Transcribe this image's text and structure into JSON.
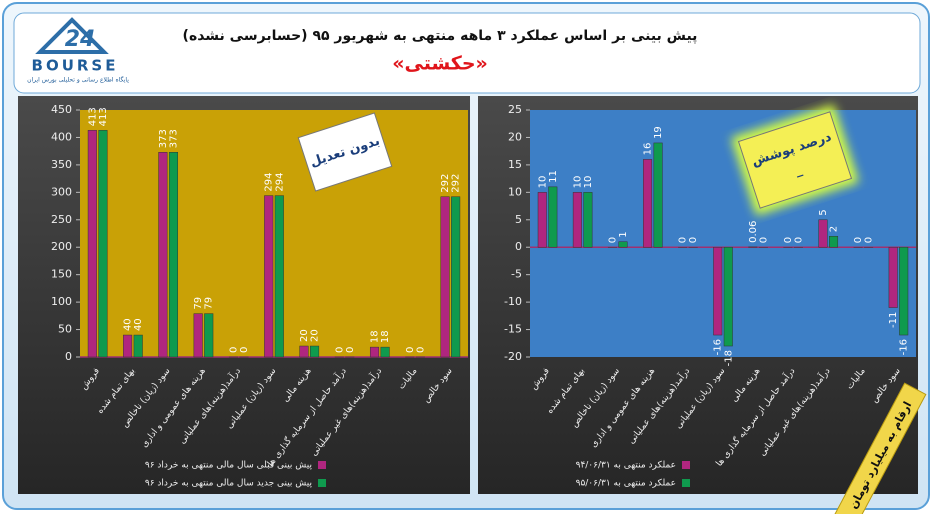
{
  "header": {
    "logo_number": "24",
    "logo_text": "BOURSE",
    "logo_caption": "پایگاه اطلاع رسانی و تحلیلی بورس ایران",
    "title": "پیش بینی بر اساس عملکرد ۳ ماهه منتهی به شهریور ۹۵ (حسابرسی نشده)",
    "subtitle": "«حکشتی»"
  },
  "footer_note": "ارقام به میلیارد تومان",
  "chart_data": [
    {
      "type": "bar",
      "annotation": [
        "بدون تعدیل"
      ],
      "plot_color": "#c9a106",
      "grid": false,
      "legend": "bottom",
      "categories": [
        "فروش",
        "بهای تمام شده",
        "سود (زیان) ناخالص",
        "هزینه های عمومی و اداری",
        "درآمد(هزینه)های عملیاتی",
        "سود (زیان) عملیاتی",
        "هزینه مالی",
        "درآمد حاصل از سرمایه گذاری ها",
        "درآمد(هزینه)های غیر عملیاتی",
        "مالیات",
        "سود خالص"
      ],
      "series": [
        {
          "name": "پیش بینی قبلی سال مالی منتهی به خرداد ۹۶",
          "color": "#b0267f",
          "values": [
            413,
            40,
            373,
            79,
            0,
            294,
            20,
            0,
            18,
            0,
            292
          ]
        },
        {
          "name": "پیش بینی جدید سال مالی منتهی به خرداد ۹۶",
          "color": "#0f9a4e",
          "values": [
            413,
            40,
            373,
            79,
            0,
            294,
            20,
            0,
            18,
            0,
            292
          ]
        }
      ],
      "ylim": [
        0,
        450
      ],
      "yticks": [
        0,
        50,
        100,
        150,
        200,
        250,
        300,
        350,
        400,
        450
      ]
    },
    {
      "type": "bar",
      "annotation": [
        "درصد پوشش",
        "_"
      ],
      "plot_color": "#3d7fc6",
      "grid": false,
      "legend": "bottom",
      "categories": [
        "فروش",
        "بهای تمام شده",
        "سود (زیان) ناخالص",
        "هزینه های عمومی و اداری",
        "درآمد(هزینه)های عملیاتی",
        "سود (زیان) عملیاتی",
        "هزینه مالی",
        "درآمد حاصل از سرمایه گذاری ها",
        "درآمد(هزینه)های غیر عملیاتی",
        "مالیات",
        "سود خالص"
      ],
      "series": [
        {
          "name": "عملکرد منتهی به ۹۴/۰۶/۳۱",
          "color": "#b0267f",
          "values": [
            10,
            10,
            0,
            16,
            0,
            -16,
            0.06,
            0,
            5,
            0,
            -11
          ]
        },
        {
          "name": "عملکرد منتهی به ۹۵/۰۶/۳۱",
          "color": "#0f9a4e",
          "values": [
            11,
            10,
            1,
            19,
            0,
            -18,
            0,
            0,
            2,
            0,
            -16
          ]
        }
      ],
      "ylim": [
        -20,
        25
      ],
      "yticks": [
        -20,
        -15,
        -10,
        -5,
        0,
        5,
        10,
        15,
        20,
        25
      ]
    }
  ]
}
